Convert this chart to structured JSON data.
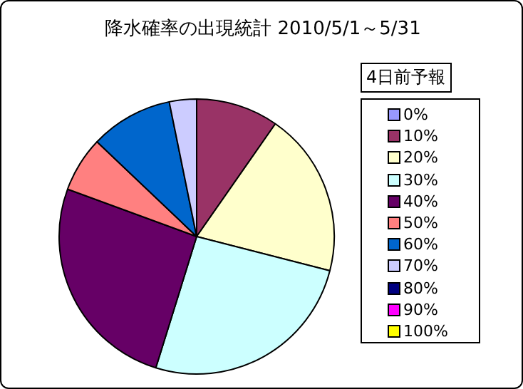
{
  "chart_data": {
    "type": "pie",
    "title": "降水確率の出現統計 2010/5/1～5/31",
    "legend_title": "4日前予報",
    "legend": "right",
    "categories": [
      "0%",
      "10%",
      "20%",
      "30%",
      "40%",
      "50%",
      "60%",
      "70%",
      "80%",
      "90%",
      "100%"
    ],
    "values": [
      0,
      9.7,
      19.3,
      25.8,
      25.8,
      6.5,
      9.7,
      3.2,
      0,
      0,
      0
    ],
    "colors": [
      "#9999ff",
      "#993366",
      "#ffffcc",
      "#ccffff",
      "#660066",
      "#ff8080",
      "#0066cc",
      "#ccccff",
      "#000080",
      "#ff00ff",
      "#ffff00"
    ]
  }
}
